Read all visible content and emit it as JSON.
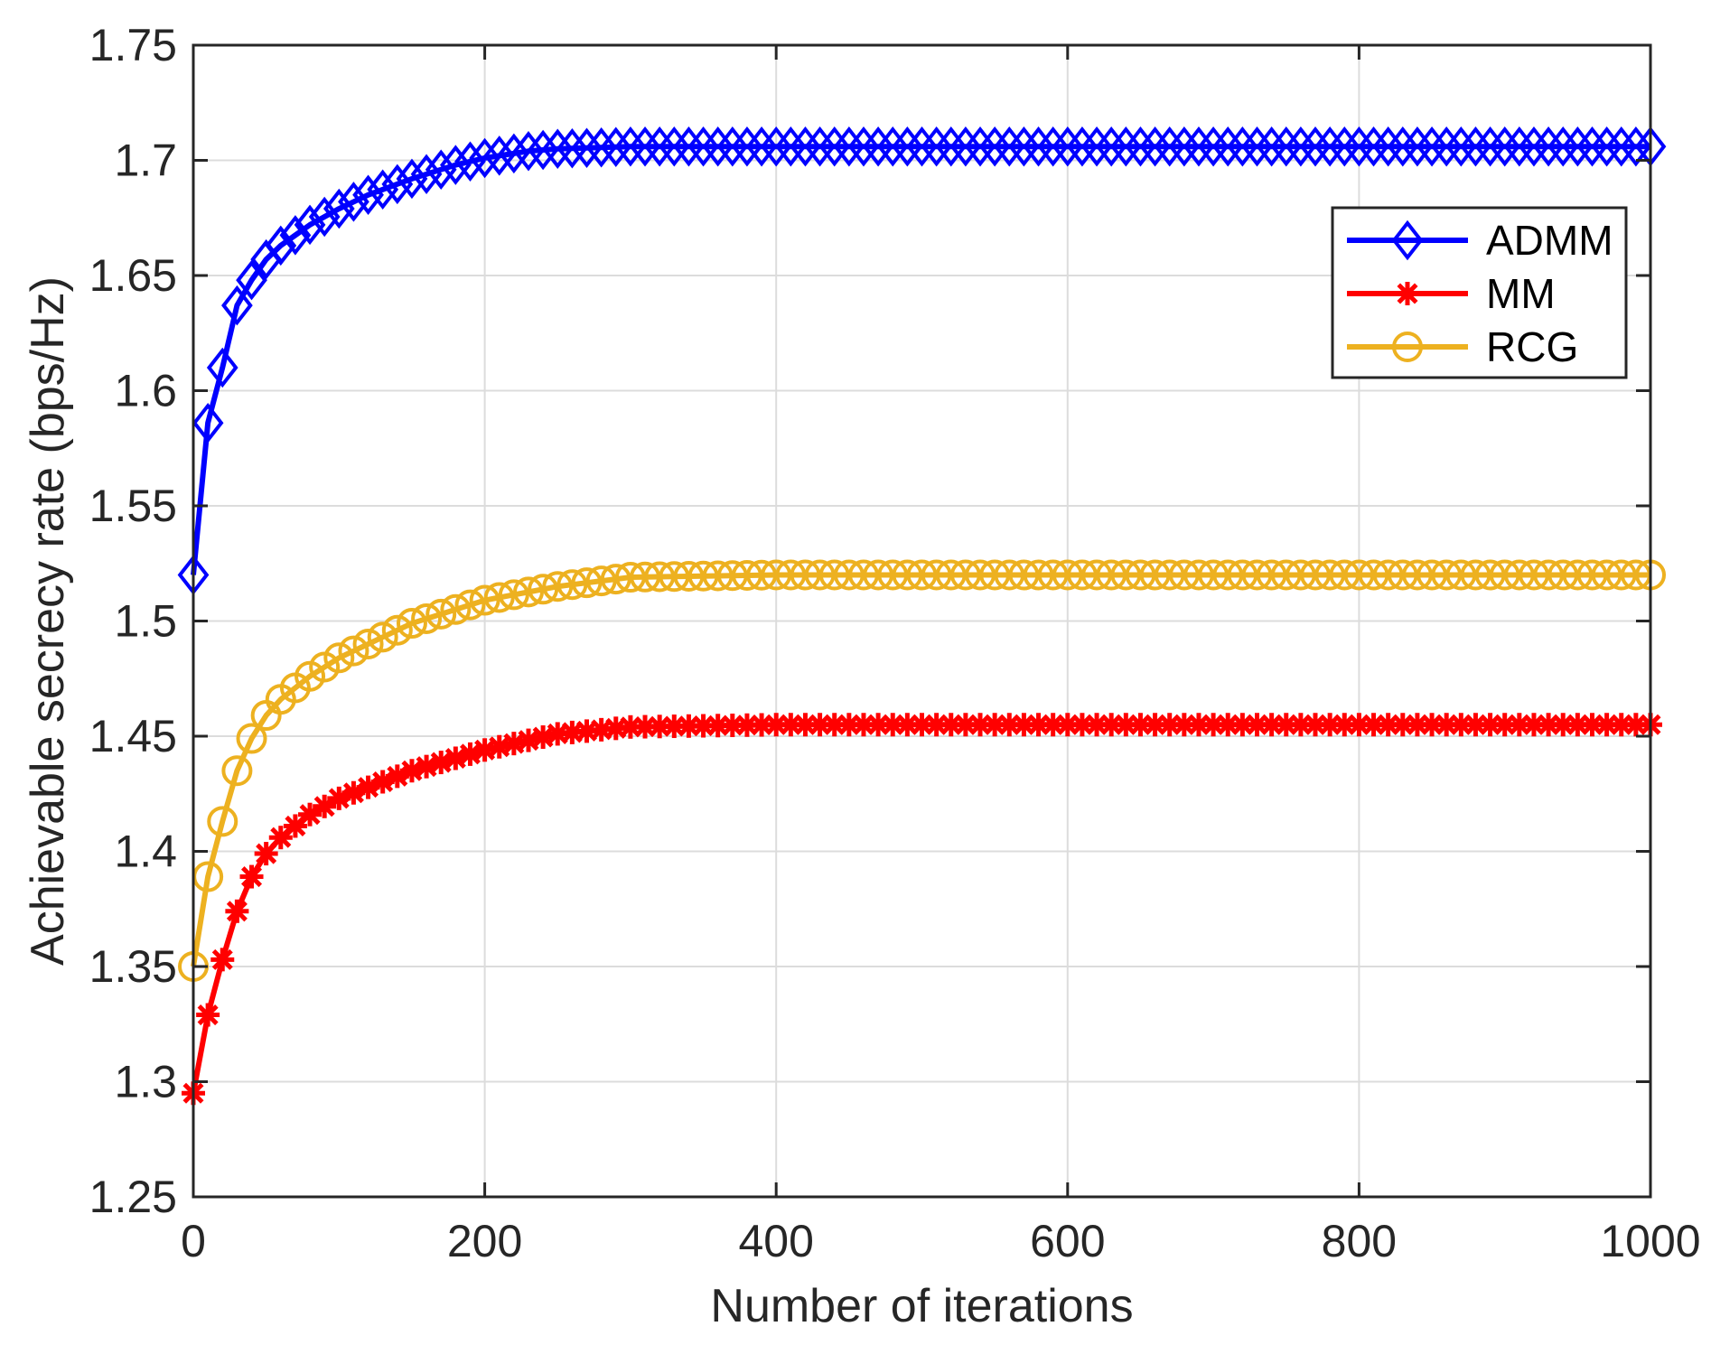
{
  "chart_data": {
    "type": "line",
    "title": "",
    "xlabel": "Number of iterations",
    "ylabel": "Achievable  secrecy rate (bps/Hz)",
    "xlim": [
      0,
      1000
    ],
    "ylim": [
      1.25,
      1.75
    ],
    "x_ticks": [
      0,
      200,
      400,
      600,
      800,
      1000
    ],
    "y_ticks": [
      1.25,
      1.3,
      1.35,
      1.4,
      1.45,
      1.5,
      1.55,
      1.6,
      1.65,
      1.7,
      1.75
    ],
    "x_tick_labels": [
      "0",
      "200",
      "400",
      "600",
      "800",
      "1000"
    ],
    "y_tick_labels": [
      "1.25",
      "1.3",
      "1.35",
      "1.4",
      "1.45",
      "1.5",
      "1.55",
      "1.6",
      "1.65",
      "1.7",
      "1.75"
    ],
    "grid": true,
    "legend_position": "upper-right",
    "marker_step": 10,
    "series": [
      {
        "name": "ADMM",
        "color": "#0000FF",
        "marker": "diamond",
        "x": [
          0,
          10,
          20,
          30,
          40,
          50,
          60,
          80,
          100,
          120,
          150,
          180,
          200,
          230,
          250,
          300,
          400,
          600,
          800,
          1000
        ],
        "values": [
          1.52,
          1.586,
          1.61,
          1.637,
          1.648,
          1.657,
          1.663,
          1.672,
          1.679,
          1.685,
          1.692,
          1.698,
          1.701,
          1.704,
          1.705,
          1.706,
          1.706,
          1.706,
          1.706,
          1.706
        ]
      },
      {
        "name": "MM",
        "color": "#FF0000",
        "marker": "asterisk",
        "x": [
          0,
          10,
          20,
          30,
          40,
          50,
          60,
          80,
          100,
          150,
          200,
          250,
          300,
          400,
          600,
          800,
          1000
        ],
        "values": [
          1.295,
          1.329,
          1.353,
          1.374,
          1.389,
          1.399,
          1.406,
          1.416,
          1.423,
          1.435,
          1.444,
          1.451,
          1.454,
          1.455,
          1.455,
          1.455,
          1.455
        ]
      },
      {
        "name": "RCG",
        "color": "#EDB120",
        "marker": "circle",
        "x": [
          0,
          10,
          20,
          30,
          40,
          50,
          60,
          80,
          100,
          150,
          200,
          250,
          300,
          400,
          600,
          800,
          1000
        ],
        "values": [
          1.35,
          1.389,
          1.413,
          1.435,
          1.449,
          1.459,
          1.466,
          1.476,
          1.484,
          1.499,
          1.509,
          1.515,
          1.519,
          1.52,
          1.52,
          1.52,
          1.52
        ]
      }
    ]
  }
}
